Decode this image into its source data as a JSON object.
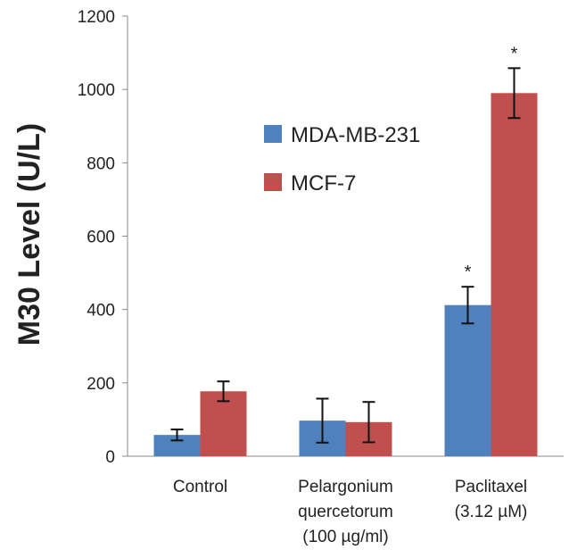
{
  "chart_data": {
    "type": "bar",
    "title": "",
    "ylabel": "M30 Level (U/L)",
    "xlabel": "",
    "ylim": [
      0,
      1200
    ],
    "yticks": [
      "0",
      "200",
      "400",
      "600",
      "800",
      "1000",
      "1200"
    ],
    "ytick_values": [
      0,
      200,
      400,
      600,
      800,
      1000,
      1200
    ],
    "grid": false,
    "legend_position": "upper-middle",
    "categories": [
      [
        "Control"
      ],
      [
        "Pelargonium",
        "quercetorum",
        "(100 µg/ml)"
      ],
      [
        "Paclitaxel",
        "(3.12 µM)"
      ]
    ],
    "series": [
      {
        "name": "MDA-MB-231",
        "color": "#4f81bd",
        "values": [
          58,
          97,
          412
        ],
        "errors": [
          15,
          60,
          50
        ],
        "significance": [
          "",
          "",
          "*"
        ]
      },
      {
        "name": "MCF-7",
        "color": "#c0504d",
        "values": [
          177,
          93,
          990
        ],
        "errors": [
          27,
          55,
          68
        ],
        "significance": [
          "",
          "",
          "*"
        ]
      }
    ]
  }
}
